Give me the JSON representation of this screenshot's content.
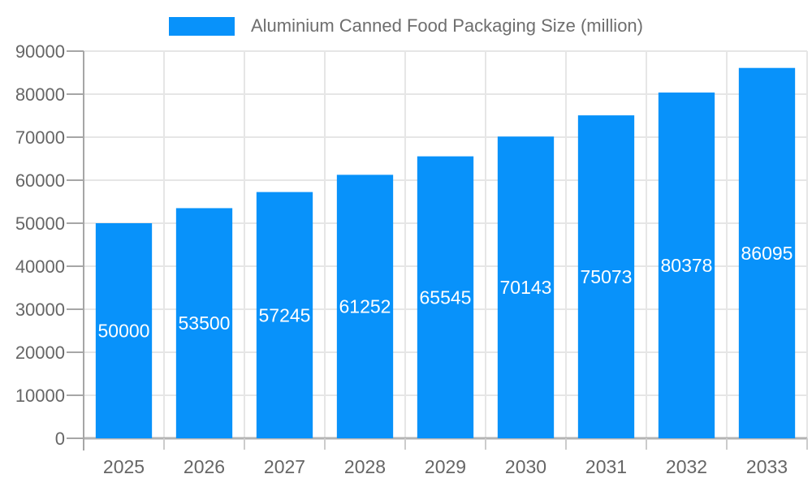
{
  "chart_data": {
    "type": "bar",
    "title": "Aluminium Canned Food Packaging Size (million)",
    "categories": [
      "2025",
      "2026",
      "2027",
      "2028",
      "2029",
      "2030",
      "2031",
      "2032",
      "2033"
    ],
    "series": [
      {
        "name": "Aluminium Canned Food Packaging Size (million)",
        "values": [
          50000,
          53500,
          57245,
          61252,
          65545,
          70143,
          75073,
          80378,
          86095
        ]
      }
    ],
    "ylim": [
      0,
      90000
    ],
    "y_ticks": [
      0,
      10000,
      20000,
      30000,
      40000,
      50000,
      60000,
      70000,
      80000,
      90000
    ],
    "grid": true,
    "legend_position": "top",
    "value_labels_inside_bars": true,
    "colors": {
      "bar": "#0892fa",
      "gridline": "#e6e6e6",
      "axis_line": "#a6a6a6",
      "x_baseline": "#b3b3b3",
      "x_tick": "#cccccc",
      "axis_text": "#666666",
      "legend_text": "#6e6e6e",
      "value_label_text": "#ffffff",
      "background": "#ffffff"
    }
  }
}
